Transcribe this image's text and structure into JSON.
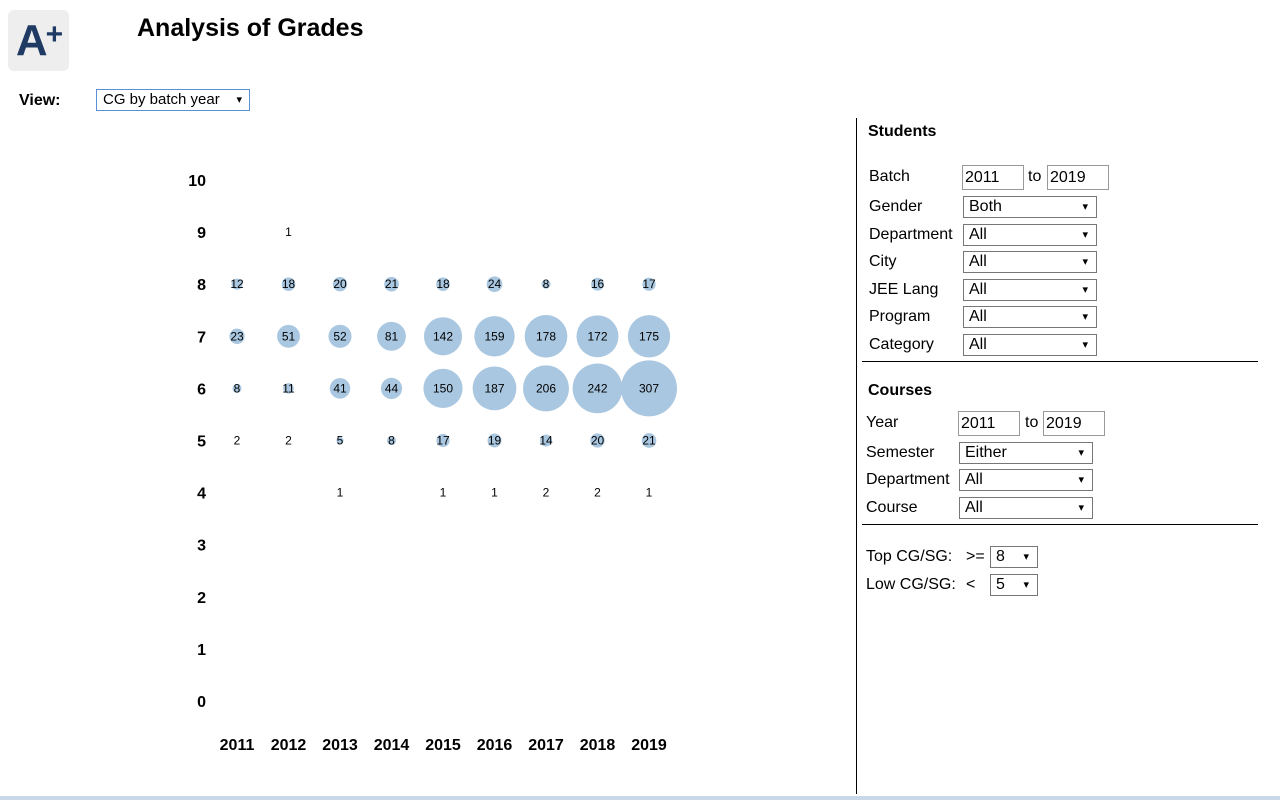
{
  "app": {
    "logo_text": "A",
    "logo_plus": "+",
    "title": "Analysis of Grades"
  },
  "view": {
    "label": "View:",
    "selected": "CG by batch year"
  },
  "chart_data": {
    "type": "scatter",
    "encoding": "bubble size = count",
    "bubble_color": "#a9c7e0",
    "x": [
      2011,
      2012,
      2013,
      2014,
      2015,
      2016,
      2017,
      2018,
      2019
    ],
    "y_ticks": [
      10,
      9,
      8,
      7,
      6,
      5,
      4,
      3,
      2,
      1,
      0
    ],
    "ylim": [
      0,
      10
    ],
    "grid": false,
    "points": [
      {
        "x": 2012,
        "y": 9,
        "count": 1
      },
      {
        "x": 2011,
        "y": 8,
        "count": 12
      },
      {
        "x": 2012,
        "y": 8,
        "count": 18
      },
      {
        "x": 2013,
        "y": 8,
        "count": 20
      },
      {
        "x": 2014,
        "y": 8,
        "count": 21
      },
      {
        "x": 2015,
        "y": 8,
        "count": 18
      },
      {
        "x": 2016,
        "y": 8,
        "count": 24
      },
      {
        "x": 2017,
        "y": 8,
        "count": 8
      },
      {
        "x": 2018,
        "y": 8,
        "count": 16
      },
      {
        "x": 2019,
        "y": 8,
        "count": 17
      },
      {
        "x": 2011,
        "y": 7,
        "count": 23
      },
      {
        "x": 2012,
        "y": 7,
        "count": 51
      },
      {
        "x": 2013,
        "y": 7,
        "count": 52
      },
      {
        "x": 2014,
        "y": 7,
        "count": 81
      },
      {
        "x": 2015,
        "y": 7,
        "count": 142
      },
      {
        "x": 2016,
        "y": 7,
        "count": 159
      },
      {
        "x": 2017,
        "y": 7,
        "count": 178
      },
      {
        "x": 2018,
        "y": 7,
        "count": 172
      },
      {
        "x": 2019,
        "y": 7,
        "count": 175
      },
      {
        "x": 2011,
        "y": 6,
        "count": 8
      },
      {
        "x": 2012,
        "y": 6,
        "count": 11
      },
      {
        "x": 2013,
        "y": 6,
        "count": 41
      },
      {
        "x": 2014,
        "y": 6,
        "count": 44
      },
      {
        "x": 2015,
        "y": 6,
        "count": 150
      },
      {
        "x": 2016,
        "y": 6,
        "count": 187
      },
      {
        "x": 2017,
        "y": 6,
        "count": 206
      },
      {
        "x": 2018,
        "y": 6,
        "count": 242
      },
      {
        "x": 2019,
        "y": 6,
        "count": 307
      },
      {
        "x": 2011,
        "y": 5,
        "count": 2
      },
      {
        "x": 2012,
        "y": 5,
        "count": 2
      },
      {
        "x": 2013,
        "y": 5,
        "count": 5
      },
      {
        "x": 2014,
        "y": 5,
        "count": 8
      },
      {
        "x": 2015,
        "y": 5,
        "count": 17
      },
      {
        "x": 2016,
        "y": 5,
        "count": 19
      },
      {
        "x": 2017,
        "y": 5,
        "count": 14
      },
      {
        "x": 2018,
        "y": 5,
        "count": 20
      },
      {
        "x": 2019,
        "y": 5,
        "count": 21
      },
      {
        "x": 2013,
        "y": 4,
        "count": 1
      },
      {
        "x": 2015,
        "y": 4,
        "count": 1
      },
      {
        "x": 2016,
        "y": 4,
        "count": 1
      },
      {
        "x": 2017,
        "y": 4,
        "count": 2
      },
      {
        "x": 2018,
        "y": 4,
        "count": 2
      },
      {
        "x": 2019,
        "y": 4,
        "count": 1
      }
    ]
  },
  "students": {
    "title": "Students",
    "batch_label": "Batch",
    "batch_from": "2011",
    "to_label": "to",
    "batch_to": "2019",
    "gender_label": "Gender",
    "gender_value": "Both",
    "department_label": "Department",
    "department_value": "All",
    "city_label": "City",
    "city_value": "All",
    "jee_label": "JEE Lang",
    "jee_value": "All",
    "program_label": "Program",
    "program_value": "All",
    "category_label": "Category",
    "category_value": "All"
  },
  "courses": {
    "title": "Courses",
    "year_label": "Year",
    "year_from": "2011",
    "to_label": "to",
    "year_to": "2019",
    "semester_label": "Semester",
    "semester_value": "Either",
    "department_label": "Department",
    "department_value": "All",
    "course_label": "Course",
    "course_value": "All"
  },
  "thresholds": {
    "top_label": "Top CG/SG:",
    "top_op": ">=",
    "top_value": "8",
    "low_label": "Low CG/SG:",
    "low_op": "<",
    "low_value": "5"
  },
  "icons": {
    "dropdown": "▾"
  }
}
